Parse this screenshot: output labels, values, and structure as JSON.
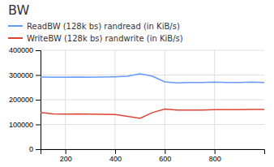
{
  "chart_data": {
    "type": "line",
    "title": "BW",
    "x": [
      100,
      150,
      200,
      250,
      300,
      350,
      400,
      450,
      500,
      550,
      600,
      650,
      700,
      750,
      800,
      850,
      900,
      950,
      1000
    ],
    "series": [
      {
        "name": "ReadBW (128k bs) randread (in KiB/s)",
        "color": "#6699ff",
        "values": [
          292000,
          291000,
          291000,
          292000,
          291000,
          292000,
          293000,
          295000,
          305000,
          295000,
          272000,
          268000,
          270000,
          270000,
          271000,
          270000,
          270000,
          271000,
          270000
        ]
      },
      {
        "name": "WriteBW (128k bs) randwrite (in KiB/s)",
        "color": "#dd4433",
        "values": [
          148000,
          143000,
          142000,
          143000,
          142000,
          141000,
          140000,
          133000,
          125000,
          148000,
          162000,
          158000,
          158000,
          158000,
          160000,
          160000,
          160000,
          161000,
          161000
        ]
      }
    ],
    "xlim": [
      100,
      1000
    ],
    "ylim": [
      0,
      400000
    ],
    "xticks": [
      200,
      400,
      600,
      800
    ],
    "yticks": [
      0,
      100000,
      200000,
      300000,
      400000
    ],
    "grid": true,
    "legend": "top"
  }
}
